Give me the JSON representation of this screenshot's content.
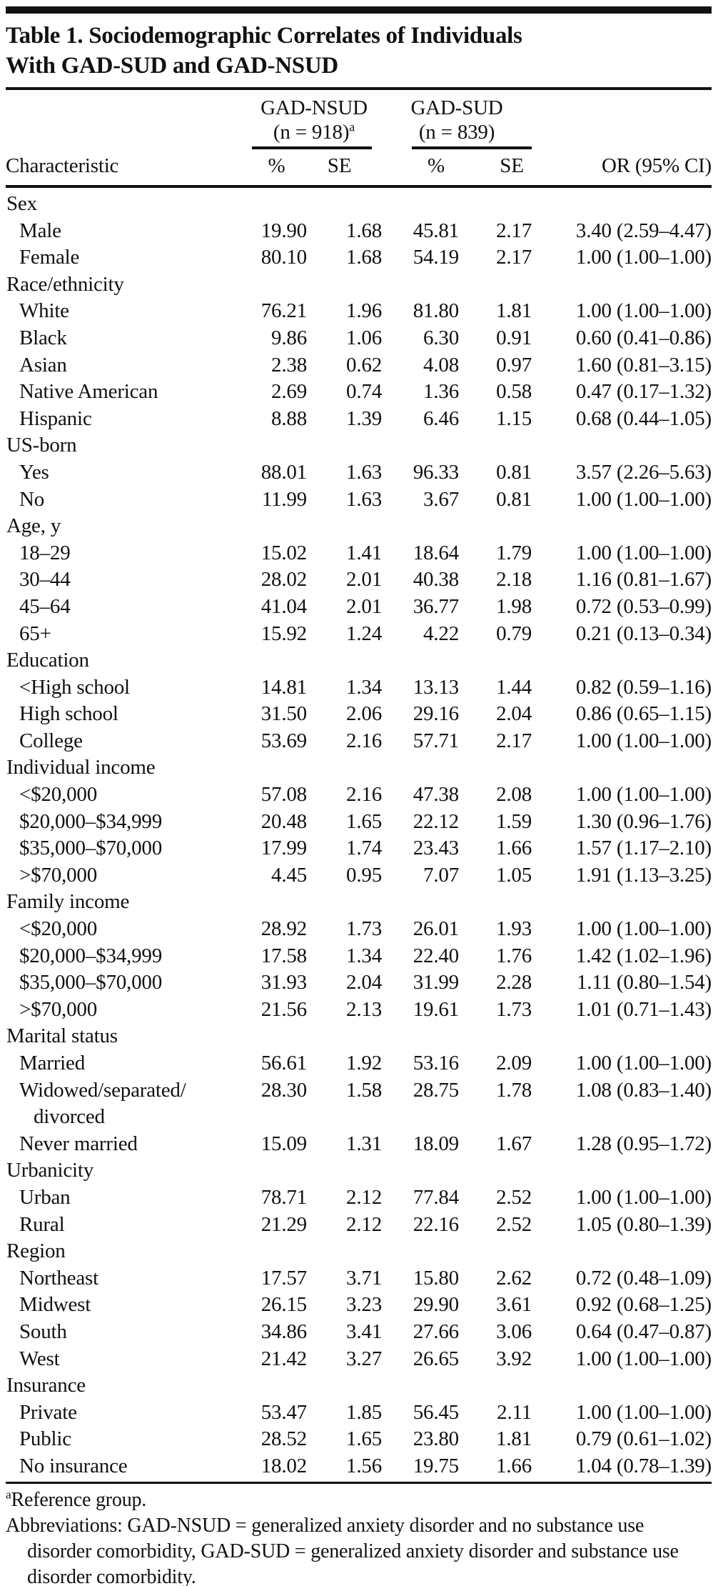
{
  "colors": {
    "ink": "#111111",
    "background": "#ffffff"
  },
  "title": {
    "line1": "Table 1. Sociodemographic Correlates of Individuals",
    "line2": "With GAD-SUD and GAD-NSUD"
  },
  "header": {
    "characteristic": "Characteristic",
    "group1": {
      "name": "GAD-NSUD",
      "n": "(n = 918)",
      "sup": "a"
    },
    "group2": {
      "name": "GAD-SUD",
      "n": "(n = 839)"
    },
    "sub": {
      "pct": "%",
      "se": "SE",
      "or": "OR (95% CI)"
    }
  },
  "rows": [
    {
      "label": "Sex",
      "group": true
    },
    {
      "label": "Male",
      "pct1": "19.90",
      "se1": "1.68",
      "pct2": "45.81",
      "se2": "2.17",
      "or": "3.40 (2.59–4.47)"
    },
    {
      "label": "Female",
      "pct1": "80.10",
      "se1": "1.68",
      "pct2": "54.19",
      "se2": "2.17",
      "or": "1.00 (1.00–1.00)"
    },
    {
      "label": "Race/ethnicity",
      "group": true
    },
    {
      "label": "White",
      "pct1": "76.21",
      "se1": "1.96",
      "pct2": "81.80",
      "se2": "1.81",
      "or": "1.00 (1.00–1.00)"
    },
    {
      "label": "Black",
      "pct1": "9.86",
      "se1": "1.06",
      "pct2": "6.30",
      "se2": "0.91",
      "or": "0.60 (0.41–0.86)"
    },
    {
      "label": "Asian",
      "pct1": "2.38",
      "se1": "0.62",
      "pct2": "4.08",
      "se2": "0.97",
      "or": "1.60 (0.81–3.15)"
    },
    {
      "label": "Native American",
      "pct1": "2.69",
      "se1": "0.74",
      "pct2": "1.36",
      "se2": "0.58",
      "or": "0.47 (0.17–1.32)"
    },
    {
      "label": "Hispanic",
      "pct1": "8.88",
      "se1": "1.39",
      "pct2": "6.46",
      "se2": "1.15",
      "or": "0.68 (0.44–1.05)"
    },
    {
      "label": "US-born",
      "group": true
    },
    {
      "label": "Yes",
      "pct1": "88.01",
      "se1": "1.63",
      "pct2": "96.33",
      "se2": "0.81",
      "or": "3.57 (2.26–5.63)"
    },
    {
      "label": "No",
      "pct1": "11.99",
      "se1": "1.63",
      "pct2": "3.67",
      "se2": "0.81",
      "or": "1.00 (1.00–1.00)"
    },
    {
      "label": "Age, y",
      "group": true
    },
    {
      "label": "18–29",
      "pct1": "15.02",
      "se1": "1.41",
      "pct2": "18.64",
      "se2": "1.79",
      "or": "1.00 (1.00–1.00)"
    },
    {
      "label": "30–44",
      "pct1": "28.02",
      "se1": "2.01",
      "pct2": "40.38",
      "se2": "2.18",
      "or": "1.16 (0.81–1.67)"
    },
    {
      "label": "45–64",
      "pct1": "41.04",
      "se1": "2.01",
      "pct2": "36.77",
      "se2": "1.98",
      "or": "0.72 (0.53–0.99)"
    },
    {
      "label": "65+",
      "pct1": "15.92",
      "se1": "1.24",
      "pct2": "4.22",
      "se2": "0.79",
      "or": "0.21 (0.13–0.34)"
    },
    {
      "label": "Education",
      "group": true
    },
    {
      "label": "<High school",
      "pct1": "14.81",
      "se1": "1.34",
      "pct2": "13.13",
      "se2": "1.44",
      "or": "0.82 (0.59–1.16)"
    },
    {
      "label": "High school",
      "pct1": "31.50",
      "se1": "2.06",
      "pct2": "29.16",
      "se2": "2.04",
      "or": "0.86 (0.65–1.15)"
    },
    {
      "label": "College",
      "pct1": "53.69",
      "se1": "2.16",
      "pct2": "57.71",
      "se2": "2.17",
      "or": "1.00 (1.00–1.00)"
    },
    {
      "label": "Individual income",
      "group": true
    },
    {
      "label": "<$20,000",
      "pct1": "57.08",
      "se1": "2.16",
      "pct2": "47.38",
      "se2": "2.08",
      "or": "1.00 (1.00–1.00)"
    },
    {
      "label": "$20,000–$34,999",
      "pct1": "20.48",
      "se1": "1.65",
      "pct2": "22.12",
      "se2": "1.59",
      "or": "1.30 (0.96–1.76)"
    },
    {
      "label": "$35,000–$70,000",
      "pct1": "17.99",
      "se1": "1.74",
      "pct2": "23.43",
      "se2": "1.66",
      "or": "1.57 (1.17–2.10)"
    },
    {
      "label": ">$70,000",
      "pct1": "4.45",
      "se1": "0.95",
      "pct2": "7.07",
      "se2": "1.05",
      "or": "1.91 (1.13–3.25)"
    },
    {
      "label": "Family income",
      "group": true
    },
    {
      "label": "<$20,000",
      "pct1": "28.92",
      "se1": "1.73",
      "pct2": "26.01",
      "se2": "1.93",
      "or": "1.00 (1.00–1.00)"
    },
    {
      "label": "$20,000–$34,999",
      "pct1": "17.58",
      "se1": "1.34",
      "pct2": "22.40",
      "se2": "1.76",
      "or": "1.42 (1.02–1.96)"
    },
    {
      "label": "$35,000–$70,000",
      "pct1": "31.93",
      "se1": "2.04",
      "pct2": "31.99",
      "se2": "2.28",
      "or": "1.11 (0.80–1.54)"
    },
    {
      "label": ">$70,000",
      "pct1": "21.56",
      "se1": "2.13",
      "pct2": "19.61",
      "se2": "1.73",
      "or": "1.01 (0.71–1.43)"
    },
    {
      "label": "Marital status",
      "group": true
    },
    {
      "label": "Married",
      "pct1": "56.61",
      "se1": "1.92",
      "pct2": "53.16",
      "se2": "2.09",
      "or": "1.00 (1.00–1.00)"
    },
    {
      "label": "Widowed/separated/",
      "label2": "divorced",
      "pct1": "28.30",
      "se1": "1.58",
      "pct2": "28.75",
      "se2": "1.78",
      "or": "1.08 (0.83–1.40)"
    },
    {
      "label": "Never married",
      "pct1": "15.09",
      "se1": "1.31",
      "pct2": "18.09",
      "se2": "1.67",
      "or": "1.28 (0.95–1.72)"
    },
    {
      "label": "Urbanicity",
      "group": true
    },
    {
      "label": "Urban",
      "pct1": "78.71",
      "se1": "2.12",
      "pct2": "77.84",
      "se2": "2.52",
      "or": "1.00 (1.00–1.00)"
    },
    {
      "label": "Rural",
      "pct1": "21.29",
      "se1": "2.12",
      "pct2": "22.16",
      "se2": "2.52",
      "or": "1.05 (0.80–1.39)"
    },
    {
      "label": "Region",
      "group": true
    },
    {
      "label": "Northeast",
      "pct1": "17.57",
      "se1": "3.71",
      "pct2": "15.80",
      "se2": "2.62",
      "or": "0.72 (0.48–1.09)"
    },
    {
      "label": "Midwest",
      "pct1": "26.15",
      "se1": "3.23",
      "pct2": "29.90",
      "se2": "3.61",
      "or": "0.92 (0.68–1.25)"
    },
    {
      "label": "South",
      "pct1": "34.86",
      "se1": "3.41",
      "pct2": "27.66",
      "se2": "3.06",
      "or": "0.64 (0.47–0.87)"
    },
    {
      "label": "West",
      "pct1": "21.42",
      "se1": "3.27",
      "pct2": "26.65",
      "se2": "3.92",
      "or": "1.00 (1.00–1.00)"
    },
    {
      "label": "Insurance",
      "group": true
    },
    {
      "label": "Private",
      "pct1": "53.47",
      "se1": "1.85",
      "pct2": "56.45",
      "se2": "2.11",
      "or": "1.00 (1.00–1.00)"
    },
    {
      "label": "Public",
      "pct1": "28.52",
      "se1": "1.65",
      "pct2": "23.80",
      "se2": "1.81",
      "or": "0.79 (0.61–1.02)"
    },
    {
      "label": "No insurance",
      "pct1": "18.02",
      "se1": "1.56",
      "pct2": "19.75",
      "se2": "1.66",
      "or": "1.04 (0.78–1.39)"
    }
  ],
  "footnotes": {
    "ref_sup": "a",
    "ref_text": "Reference group.",
    "abbreviations": "Abbreviations: GAD-NSUD = generalized anxiety disorder and no substance use disorder comorbidity, GAD-SUD = generalized anxiety disorder and substance use disorder comorbidity."
  }
}
